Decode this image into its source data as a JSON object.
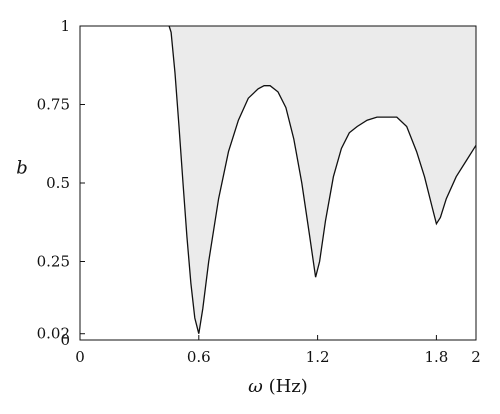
{
  "chart_data": {
    "type": "area",
    "xlabel_symbol": "ω",
    "xlabel_unit": " (Hz)",
    "ylabel": "b",
    "xlim": [
      0,
      2
    ],
    "ylim": [
      0,
      1
    ],
    "x_ticks": [
      "0",
      "0.6",
      "1.2",
      "1.8",
      "2"
    ],
    "x_tick_values": [
      0,
      0.6,
      1.2,
      1.8,
      2
    ],
    "y_ticks": [
      "1",
      "0.75",
      "0.5",
      "0.25",
      "0.02",
      "0"
    ],
    "y_tick_values": [
      1,
      0.75,
      0.5,
      0.25,
      0.02,
      0
    ],
    "fill_color": "#ebebeb",
    "line_color": "#111111",
    "grid": false,
    "series": [
      {
        "x": [
          0.45,
          0.46,
          0.48,
          0.5,
          0.52,
          0.54,
          0.56,
          0.58,
          0.6,
          0.62,
          0.65,
          0.7,
          0.75,
          0.8,
          0.85,
          0.9,
          0.93,
          0.96,
          1.0,
          1.04,
          1.08,
          1.12,
          1.16,
          1.19,
          1.21,
          1.24,
          1.28,
          1.32,
          1.36,
          1.4,
          1.45,
          1.5,
          1.55,
          1.6,
          1.65,
          1.7,
          1.74,
          1.78,
          1.8,
          1.82,
          1.85,
          1.9,
          1.95,
          2.0
        ],
        "values": [
          1.0,
          0.98,
          0.85,
          0.68,
          0.5,
          0.33,
          0.18,
          0.07,
          0.02,
          0.1,
          0.25,
          0.45,
          0.6,
          0.7,
          0.77,
          0.8,
          0.81,
          0.81,
          0.79,
          0.74,
          0.64,
          0.5,
          0.33,
          0.2,
          0.25,
          0.38,
          0.52,
          0.61,
          0.66,
          0.68,
          0.7,
          0.71,
          0.71,
          0.71,
          0.68,
          0.6,
          0.52,
          0.42,
          0.37,
          0.39,
          0.45,
          0.52,
          0.57,
          0.62
        ]
      }
    ]
  }
}
